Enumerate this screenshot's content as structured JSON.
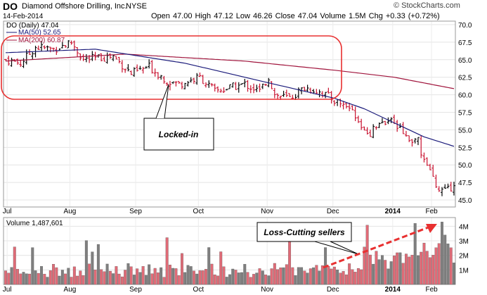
{
  "header": {
    "symbol": "DO",
    "company": "Diamond Offshore Drilling, Inc.",
    "exchange": "NYSE",
    "date": "14-Feb-2014",
    "quote": "Open 47.00  High 47.12  Low 46.26  Close 47.04  Volume 1.5M  Chg +0.33 (+0.72%)",
    "watermark": "© StockCharts.com"
  },
  "legend": {
    "price": "DO (Daily) 47.04",
    "ma50": "MA(50) 52.65",
    "ma200": "MA(200) 60.87",
    "volume": "Volume 1,487,601"
  },
  "annotations": {
    "locked_in": "Locked-in",
    "loss_cutting": "Loss-Cutting sellers"
  },
  "colors": {
    "up": "#000000",
    "down": "#c8102e",
    "ma50": "#1a1a7a",
    "ma200": "#a0143c",
    "vol_up": "#7f7f7f",
    "vol_down": "#e06b77",
    "highlight": "#e83030"
  },
  "chart_data": {
    "type": "bar",
    "x_labels": [
      "Jul",
      "Aug",
      "Sep",
      "Oct",
      "Nov",
      "Dec",
      "2014",
      "Feb"
    ],
    "price_axis": {
      "ticks": [
        45.0,
        47.5,
        50.0,
        52.5,
        55.0,
        57.5,
        60.0,
        62.5,
        65.0,
        67.5,
        70.0
      ],
      "range": [
        44.0,
        70.5
      ]
    },
    "volume_axis": {
      "ticks": [
        "1M",
        "2M",
        "3M",
        "4M"
      ],
      "range": [
        0,
        4.6
      ]
    },
    "price_waypoints": [
      [
        0,
        65.0
      ],
      [
        5,
        64.5
      ],
      [
        10,
        66.8
      ],
      [
        16,
        66.5
      ],
      [
        22,
        67.5
      ],
      [
        26,
        65.0
      ],
      [
        32,
        65.3
      ],
      [
        36,
        65.5
      ],
      [
        42,
        63.0
      ],
      [
        48,
        64.0
      ],
      [
        54,
        62.0
      ],
      [
        58,
        61.5
      ],
      [
        65,
        62.5
      ],
      [
        70,
        60.5
      ],
      [
        75,
        61.0
      ],
      [
        80,
        61.5
      ],
      [
        85,
        60.5
      ],
      [
        88,
        62.5
      ],
      [
        90,
        60.0
      ],
      [
        95,
        59.5
      ],
      [
        100,
        61.0
      ],
      [
        105,
        60.5
      ],
      [
        110,
        59.2
      ],
      [
        115,
        58.2
      ],
      [
        118,
        56.0
      ],
      [
        122,
        54.5
      ],
      [
        126,
        56.5
      ],
      [
        130,
        56.0
      ],
      [
        134,
        54.0
      ],
      [
        138,
        53.5
      ],
      [
        140,
        50.5
      ],
      [
        143,
        48.0
      ],
      [
        146,
        46.0
      ],
      [
        150,
        47.0
      ]
    ],
    "ma50_waypoints": [
      [
        0,
        66.0
      ],
      [
        30,
        66.5
      ],
      [
        60,
        64.5
      ],
      [
        90,
        61.5
      ],
      [
        110,
        59.5
      ],
      [
        120,
        58.0
      ],
      [
        130,
        56.0
      ],
      [
        140,
        54.0
      ],
      [
        150,
        52.65
      ]
    ],
    "ma200_waypoints": [
      [
        0,
        64.8
      ],
      [
        40,
        65.8
      ],
      [
        80,
        64.8
      ],
      [
        110,
        63.5
      ],
      [
        130,
        62.5
      ],
      [
        150,
        60.87
      ]
    ],
    "last_close": 47.04,
    "last_volume_millions": 1.49
  }
}
